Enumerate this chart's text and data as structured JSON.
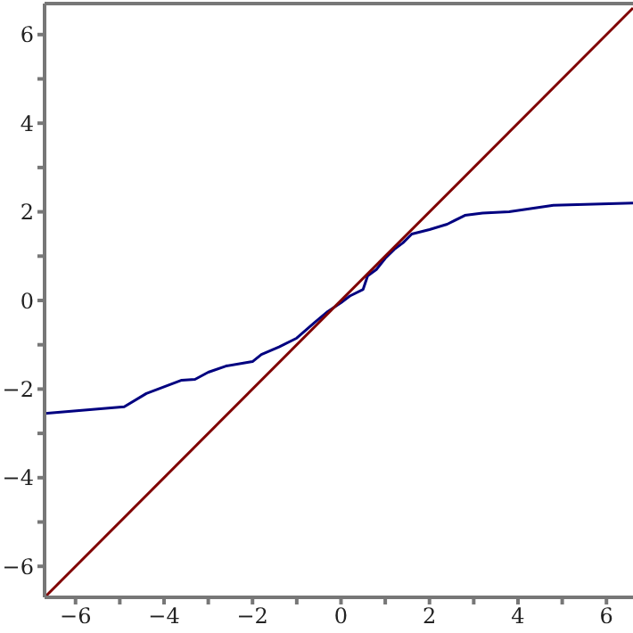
{
  "chart_data": {
    "type": "line",
    "xlim": [
      -6.7,
      6.6
    ],
    "ylim": [
      -6.7,
      6.7
    ],
    "xticks": [
      -6,
      {
        "value": -5,
        "label": null
      },
      -4,
      {
        "value": -3,
        "label": null
      },
      -2,
      {
        "value": -1,
        "label": null
      },
      0,
      {
        "value": 1,
        "label": null
      },
      2,
      {
        "value": 3,
        "label": null
      },
      4,
      {
        "value": 5,
        "label": null
      },
      6
    ],
    "yticks": [
      -6,
      {
        "value": -5,
        "label": null
      },
      -4,
      {
        "value": -3,
        "label": null
      },
      -2,
      {
        "value": -1,
        "label": null
      },
      0,
      {
        "value": 1,
        "label": null
      },
      2,
      {
        "value": 3,
        "label": null
      },
      4,
      {
        "value": 5,
        "label": null
      },
      6
    ],
    "grid": false,
    "marker": "none",
    "line_style": "solid",
    "series": [
      {
        "color": "#000080",
        "x": [
          -6.7,
          -4.9,
          -4.4,
          -3.6,
          -3.3,
          -3.0,
          -2.6,
          -2.0,
          -1.8,
          -1.4,
          -1.0,
          -0.6,
          -0.3,
          0,
          0.2,
          0.5,
          0.6,
          0.8,
          1.0,
          1.2,
          1.4,
          1.6,
          2.0,
          2.4,
          2.8,
          3.2,
          3.8,
          4.8,
          6.6
        ],
        "values": [
          -2.55,
          -2.4,
          -2.1,
          -1.8,
          -1.78,
          -1.62,
          -1.48,
          -1.38,
          -1.22,
          -1.05,
          -0.85,
          -0.5,
          -0.25,
          -0.05,
          0.1,
          0.25,
          0.55,
          0.7,
          0.95,
          1.15,
          1.3,
          1.5,
          1.6,
          1.72,
          1.92,
          1.97,
          2.0,
          2.15,
          2.2
        ]
      },
      {
        "color": "#800000",
        "x": [
          -6.7,
          6.6
        ],
        "values": [
          -6.7,
          6.6
        ]
      }
    ]
  }
}
